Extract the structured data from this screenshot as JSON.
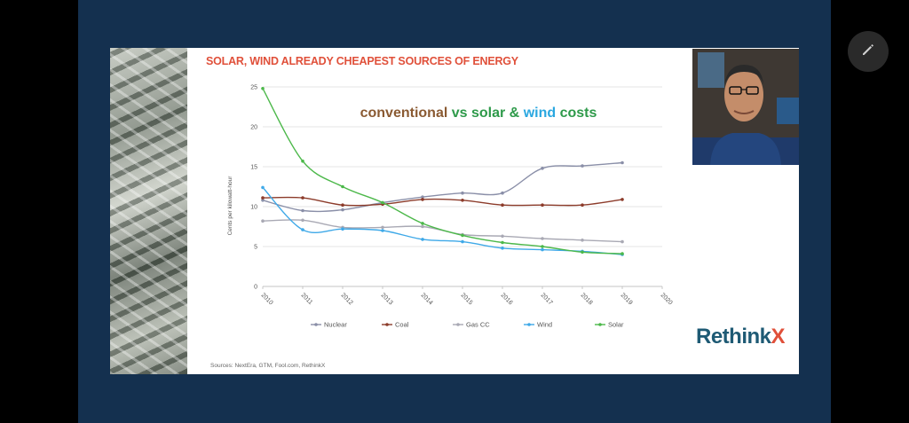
{
  "slide": {
    "title": "SOLAR, WIND ALREADY CHEAPEST SOURCES OF ENERGY",
    "subtitle_parts": [
      {
        "text": "conventional",
        "color": "#8a5a32"
      },
      {
        "text": " vs ",
        "color": "#2e9a4a"
      },
      {
        "text": "solar",
        "color": "#2e9a4a"
      },
      {
        "text": " & ",
        "color": "#2e9a4a"
      },
      {
        "text": "wind",
        "color": "#2aa7e0"
      },
      {
        "text": " costs",
        "color": "#2e9a4a"
      }
    ],
    "sources": "Sources: NextEra, GTM, Fool.com, RethinkX",
    "logo_main": "Rethink",
    "logo_accent": "X"
  },
  "chart_data": {
    "type": "line",
    "title": "",
    "xlabel": "",
    "ylabel": "Cents per kilowatt-hour",
    "xlim": [
      2010,
      2020
    ],
    "ylim": [
      0,
      25
    ],
    "x_ticks": [
      "2010",
      "2011",
      "2012",
      "2013",
      "2014",
      "2015",
      "2016",
      "2017",
      "2018",
      "2019",
      "2020"
    ],
    "y_ticks": [
      "0",
      "5",
      "10",
      "15",
      "20",
      "25"
    ],
    "grid": "horizontal",
    "legend_position": "bottom",
    "x": [
      2010,
      2011,
      2012,
      2013,
      2014,
      2015,
      2016,
      2017,
      2018,
      2019
    ],
    "series": [
      {
        "name": "Nuclear",
        "color": "#8a8fa8",
        "values": [
          10.8,
          9.5,
          9.6,
          10.5,
          11.2,
          11.7,
          11.7,
          14.8,
          15.1,
          15.5
        ]
      },
      {
        "name": "Coal",
        "color": "#8c3b2a",
        "values": [
          11.1,
          11.1,
          10.2,
          10.3,
          10.9,
          10.8,
          10.2,
          10.2,
          10.2,
          10.9
        ]
      },
      {
        "name": "Gas CC",
        "color": "#a9a9b4",
        "values": [
          8.2,
          8.3,
          7.4,
          7.4,
          7.5,
          6.5,
          6.3,
          6.0,
          5.8,
          5.6
        ]
      },
      {
        "name": "Wind",
        "color": "#3fa9e8",
        "values": [
          12.4,
          7.1,
          7.2,
          7.0,
          5.9,
          5.6,
          4.8,
          4.6,
          4.4,
          4.0
        ]
      },
      {
        "name": "Solar",
        "color": "#4cb84a",
        "values": [
          24.8,
          15.7,
          12.5,
          10.5,
          7.9,
          6.4,
          5.5,
          5.0,
          4.3,
          4.1
        ]
      }
    ]
  },
  "ui": {
    "edit_icon": "pencil-icon",
    "webcam_label": "presenter-webcam"
  }
}
